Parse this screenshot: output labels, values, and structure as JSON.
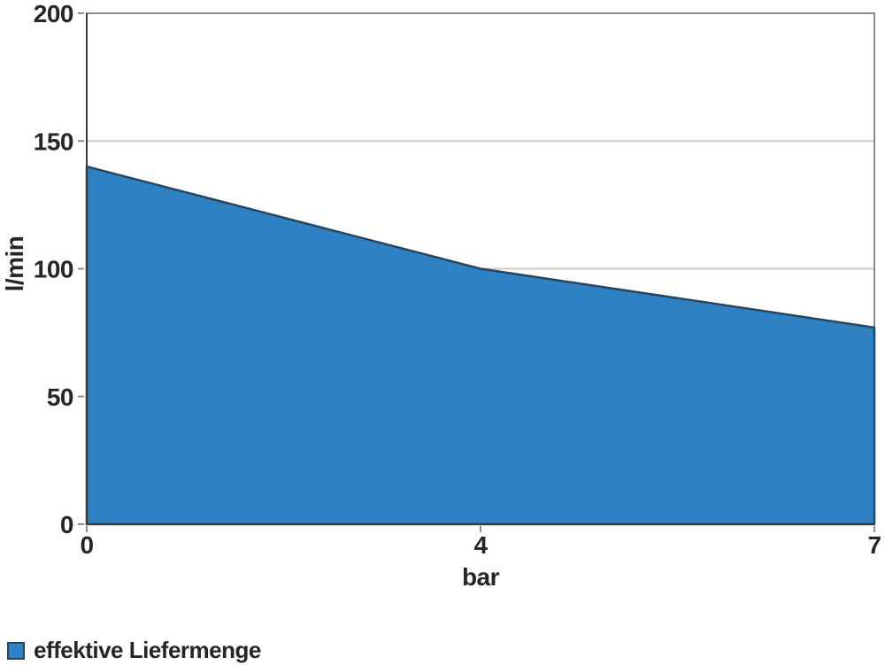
{
  "chart_data": {
    "type": "area",
    "categories": [
      "0",
      "4",
      "7"
    ],
    "series": [
      {
        "name": "effektive Liefermenge",
        "values": [
          140,
          100,
          77
        ]
      }
    ],
    "xlabel": "bar",
    "ylabel": "l/min",
    "ylim": [
      0,
      200
    ],
    "yticks": [
      0,
      50,
      100,
      150,
      200
    ],
    "x_scale": "evenly-spaced-categories",
    "grid": "horizontal",
    "legend": {
      "position": "bottom-left",
      "items": [
        {
          "label": "effektive Liefermenge",
          "swatch_color": "#2E82C4"
        }
      ]
    },
    "colors": {
      "area_fill": "#2E82C4",
      "area_stroke": "#27455F",
      "gridline": "#C9C9C9",
      "plot_border": "#8C8C8C",
      "axis_line": "#3A3A3A",
      "tick": "#8C8C8C",
      "text": "#262626"
    }
  }
}
